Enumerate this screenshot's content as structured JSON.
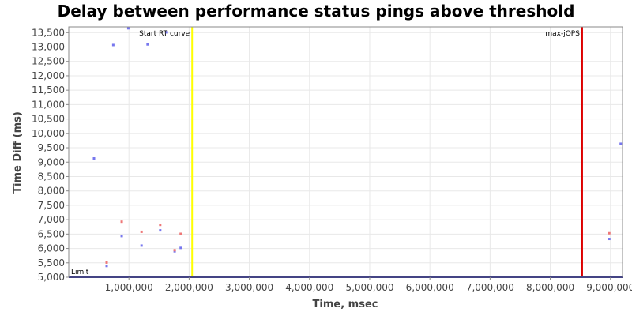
{
  "chart_data": {
    "type": "scatter",
    "title": "Delay between performance status pings above threshold",
    "xlabel": "Time, msec",
    "ylabel": "Time Diff (ms)",
    "xlim": [
      0,
      9200000
    ],
    "ylim": [
      5000,
      13700
    ],
    "x_ticks": [
      1000000,
      2000000,
      3000000,
      4000000,
      5000000,
      6000000,
      7000000,
      8000000,
      9000000
    ],
    "x_tick_labels": [
      "1,000,000",
      "2,000,000",
      "3,000,000",
      "4,000,000",
      "5,000,000",
      "6,000,000",
      "7,000,000",
      "8,000,000",
      "9,000,000"
    ],
    "y_ticks": [
      5000,
      5500,
      6000,
      6500,
      7000,
      7500,
      8000,
      8500,
      9000,
      9500,
      10000,
      10500,
      11000,
      11500,
      12000,
      12500,
      13000,
      13500
    ],
    "y_tick_labels": [
      "5,000",
      "5,500",
      "6,000",
      "6,500",
      "7,000",
      "7,500",
      "8,000",
      "8,500",
      "9,000",
      "9,500",
      "10,000",
      "10,500",
      "11,000",
      "11,500",
      "12,000",
      "12,500",
      "13,000",
      "13,500"
    ],
    "grid": true,
    "plot_background": "#ffffff",
    "grid_color": "#e8e8e8",
    "series": [
      {
        "color": "#7777ee",
        "points": [
          {
            "x": 420000,
            "y": 9130
          },
          {
            "x": 630000,
            "y": 5390
          },
          {
            "x": 740000,
            "y": 13070
          },
          {
            "x": 880000,
            "y": 6430
          },
          {
            "x": 990000,
            "y": 13650
          },
          {
            "x": 1210000,
            "y": 6100
          },
          {
            "x": 1310000,
            "y": 13090
          },
          {
            "x": 1520000,
            "y": 6630
          },
          {
            "x": 1630000,
            "y": 13510
          },
          {
            "x": 1760000,
            "y": 5900
          },
          {
            "x": 1860000,
            "y": 6020
          },
          {
            "x": 8980000,
            "y": 6330
          },
          {
            "x": 9170000,
            "y": 9640
          }
        ]
      },
      {
        "color": "#ee7777",
        "points": [
          {
            "x": 630000,
            "y": 5510
          },
          {
            "x": 880000,
            "y": 6930
          },
          {
            "x": 1210000,
            "y": 6580
          },
          {
            "x": 1520000,
            "y": 6820
          },
          {
            "x": 1760000,
            "y": 5940
          },
          {
            "x": 1860000,
            "y": 6510
          },
          {
            "x": 8980000,
            "y": 6530
          }
        ]
      }
    ],
    "vertical_markers": [
      {
        "x": 2050000,
        "label": "Start RT curve",
        "color": "#ffff00"
      },
      {
        "x": 8530000,
        "label": "max-jOPS",
        "color": "#dd0000"
      }
    ],
    "horizontal_markers": [
      {
        "y": 5000,
        "label": "Limit",
        "color": "#000080"
      }
    ]
  }
}
